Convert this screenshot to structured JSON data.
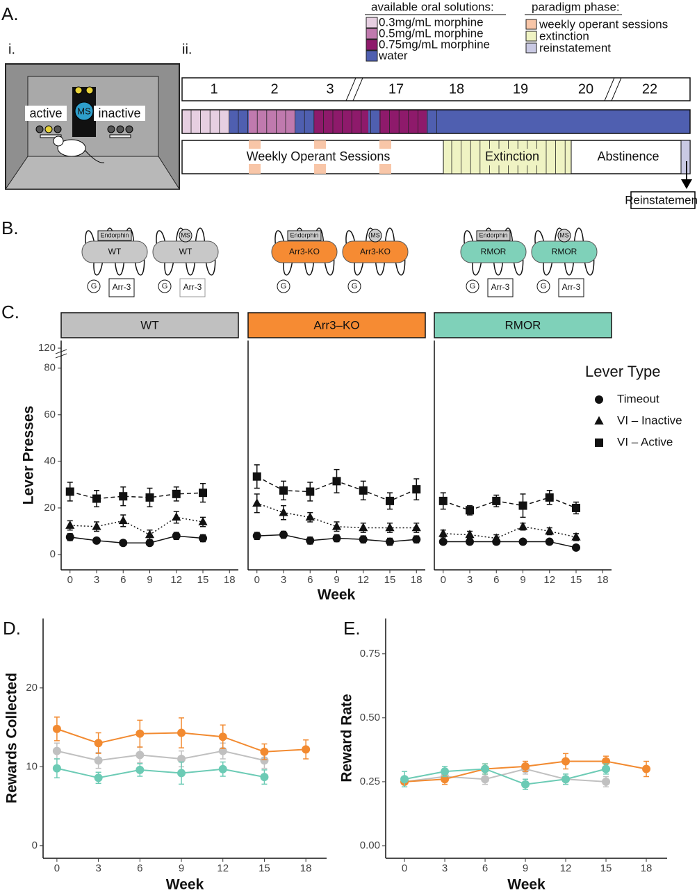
{
  "figure": {
    "panel_a": {
      "label": "A.",
      "sub_i": "i.",
      "sub_ii": "ii.",
      "lever_active": "active",
      "lever_inactive": "inactive",
      "ms": "MS",
      "solutions_title": "available oral solutions:",
      "solutions": [
        {
          "name": "0.3mg/mL morphine",
          "color": "#e6cfe1"
        },
        {
          "name": "0.5mg/mL morphine",
          "color": "#c07aae"
        },
        {
          "name": "0.75mg/mL morphine",
          "color": "#8e1a6b"
        },
        {
          "name": "water",
          "color": "#4f5fb0"
        }
      ],
      "phase_title": "paradigm phase:",
      "phases": [
        {
          "name": "weekly operant sessions",
          "color": "#f8c6a8"
        },
        {
          "name": "extinction",
          "color": "#eff3c3"
        },
        {
          "name": "reinstatement",
          "color": "#c9c9e3"
        }
      ],
      "timeline_weeks": [
        "1",
        "2",
        "3",
        "17",
        "18",
        "19",
        "20",
        "22"
      ],
      "bar_labels": [
        "Weekly Operant Sessions",
        "Extinction",
        "Abstinence"
      ],
      "reinstatement": "Reinstatement"
    },
    "panel_b": {
      "label": "B.",
      "endorphin": "Endorphin",
      "ms": "MS",
      "g": "G",
      "arr": "Arr-3",
      "receptors": [
        {
          "name": "WT",
          "color": "#c8c8c8"
        },
        {
          "name": "Arr3-KO",
          "color": "#f68b33"
        },
        {
          "name": "RMOR",
          "color": "#7fd1b9"
        }
      ]
    }
  },
  "chart_data": [
    {
      "type": "facet_line",
      "panel": "C.",
      "ylabel": "Lever Presses",
      "xlabel": "Week",
      "legend_title": "Lever Type",
      "legend": [
        {
          "name": "Timeout",
          "marker": "circle",
          "dash": "solid"
        },
        {
          "name": "VI – Inactive",
          "marker": "triangle",
          "dash": "dotted"
        },
        {
          "name": "VI – Active",
          "marker": "square",
          "dash": "dashed"
        }
      ],
      "ylim": [
        0,
        125
      ],
      "ybreak": [
        85,
        115
      ],
      "yticks": [
        0,
        20,
        40,
        60,
        80,
        120
      ],
      "xlim": [
        -1,
        19
      ],
      "xticks": [
        0,
        3,
        6,
        9,
        12,
        15,
        18
      ],
      "facets": [
        {
          "name": "WT",
          "color": "#c0c0c0",
          "x": [
            0,
            3,
            6,
            9,
            12,
            15
          ],
          "series": [
            {
              "values": [
                7.5,
                6,
                5,
                5,
                8,
                7
              ],
              "errors": [
                1.5,
                1,
                1,
                1,
                1.5,
                1.5
              ]
            },
            {
              "values": [
                12.5,
                12,
                14.5,
                8.5,
                16,
                14
              ],
              "errors": [
                2,
                2,
                2.5,
                2,
                2.5,
                2
              ]
            },
            {
              "values": [
                27,
                24,
                25,
                24.5,
                26,
                26.5
              ],
              "errors": [
                4,
                3.5,
                4,
                4,
                3,
                4
              ]
            }
          ]
        },
        {
          "name": "Arr3–KO",
          "color": "#f68b33",
          "x": [
            0,
            3,
            6,
            9,
            12,
            15,
            18
          ],
          "series": [
            {
              "values": [
                8,
                8.5,
                6,
                7,
                6.5,
                5.5,
                6.5
              ],
              "errors": [
                1.5,
                1.5,
                1.5,
                1.5,
                1.5,
                1.5,
                1.5
              ]
            },
            {
              "values": [
                22,
                18,
                16,
                12,
                11.5,
                11.5,
                11.5
              ],
              "errors": [
                4,
                3,
                2,
                2,
                2,
                2,
                2
              ]
            },
            {
              "values": [
                33.5,
                27.5,
                27,
                31.5,
                27.5,
                23,
                28
              ],
              "errors": [
                5,
                4,
                4,
                5,
                4,
                3.5,
                4.5
              ]
            }
          ]
        },
        {
          "name": "RMOR",
          "color": "#7fd1b9",
          "x": [
            0,
            3,
            6,
            9,
            12,
            15
          ],
          "series": [
            {
              "values": [
                5.5,
                5.5,
                5.5,
                5.5,
                5.5,
                3
              ],
              "errors": [
                1,
                1,
                1,
                1,
                1,
                1
              ]
            },
            {
              "values": [
                9,
                8.5,
                7,
                12,
                10,
                7.5
              ],
              "errors": [
                1.5,
                1.5,
                1.5,
                1.5,
                1.5,
                1.5
              ]
            },
            {
              "values": [
                23,
                19,
                23,
                21,
                24.5,
                20
              ],
              "errors": [
                3.5,
                2,
                2.5,
                5,
                3,
                2.5
              ]
            }
          ]
        }
      ]
    },
    {
      "type": "line",
      "panel": "D.",
      "ylabel": "Rewards Collected",
      "xlabel": "Week",
      "ylim": [
        -1.6,
        28.8
      ],
      "yticks": [
        0,
        10,
        20
      ],
      "xlim": [
        -1,
        19.5
      ],
      "xticks": [
        0,
        3,
        6,
        9,
        12,
        15,
        18
      ],
      "series": [
        {
          "color": "#c0c0c0",
          "x": [
            0,
            3,
            6,
            9,
            12,
            15
          ],
          "values": [
            12,
            10.8,
            11.5,
            11,
            12,
            10.8
          ],
          "errors": [
            1,
            1,
            1,
            1,
            1,
            1
          ]
        },
        {
          "color": "#f28a30",
          "x": [
            0,
            3,
            6,
            9,
            12,
            15,
            18
          ],
          "values": [
            14.8,
            13,
            14.2,
            14.3,
            13.8,
            11.9,
            12.2
          ],
          "errors": [
            1.5,
            1.3,
            1.7,
            1.9,
            1.5,
            1,
            1.2
          ]
        },
        {
          "color": "#6ccbb5",
          "x": [
            0,
            3,
            6,
            9,
            12,
            15
          ],
          "values": [
            9.8,
            8.6,
            9.6,
            9.2,
            9.7,
            8.7
          ],
          "errors": [
            1.2,
            0.7,
            0.8,
            1.4,
            0.9,
            0.9
          ]
        }
      ]
    },
    {
      "type": "line",
      "panel": "E.",
      "ylabel": "Reward Rate",
      "xlabel": "Week",
      "ylim": [
        -0.049,
        0.888
      ],
      "yticks": [
        {
          "value": 0,
          "label": "0.00"
        },
        {
          "value": 0.25,
          "label": "0.25"
        },
        {
          "value": 0.5,
          "label": "0.50"
        },
        {
          "value": 0.75,
          "label": "0.75"
        }
      ],
      "xlim": [
        -1.4,
        19.55
      ],
      "xticks": [
        0,
        3,
        6,
        9,
        12,
        15,
        18
      ],
      "series": [
        {
          "color": "#c0c0c0",
          "x": [
            0,
            3,
            6,
            9,
            12,
            15
          ],
          "values": [
            0.25,
            0.27,
            0.26,
            0.3,
            0.26,
            0.25
          ],
          "errors": [
            0.02,
            0.02,
            0.02,
            0.02,
            0.02,
            0.02
          ]
        },
        {
          "color": "#f28a30",
          "x": [
            0,
            3,
            6,
            9,
            12,
            15,
            18
          ],
          "values": [
            0.25,
            0.26,
            0.3,
            0.31,
            0.33,
            0.33,
            0.3
          ],
          "errors": [
            0.02,
            0.02,
            0.02,
            0.02,
            0.03,
            0.02,
            0.03
          ]
        },
        {
          "color": "#6ccbb5",
          "x": [
            0,
            3,
            6,
            9,
            12,
            15
          ],
          "values": [
            0.26,
            0.29,
            0.3,
            0.24,
            0.26,
            0.3
          ],
          "errors": [
            0.03,
            0.02,
            0.02,
            0.02,
            0.02,
            0.02
          ]
        }
      ]
    }
  ]
}
